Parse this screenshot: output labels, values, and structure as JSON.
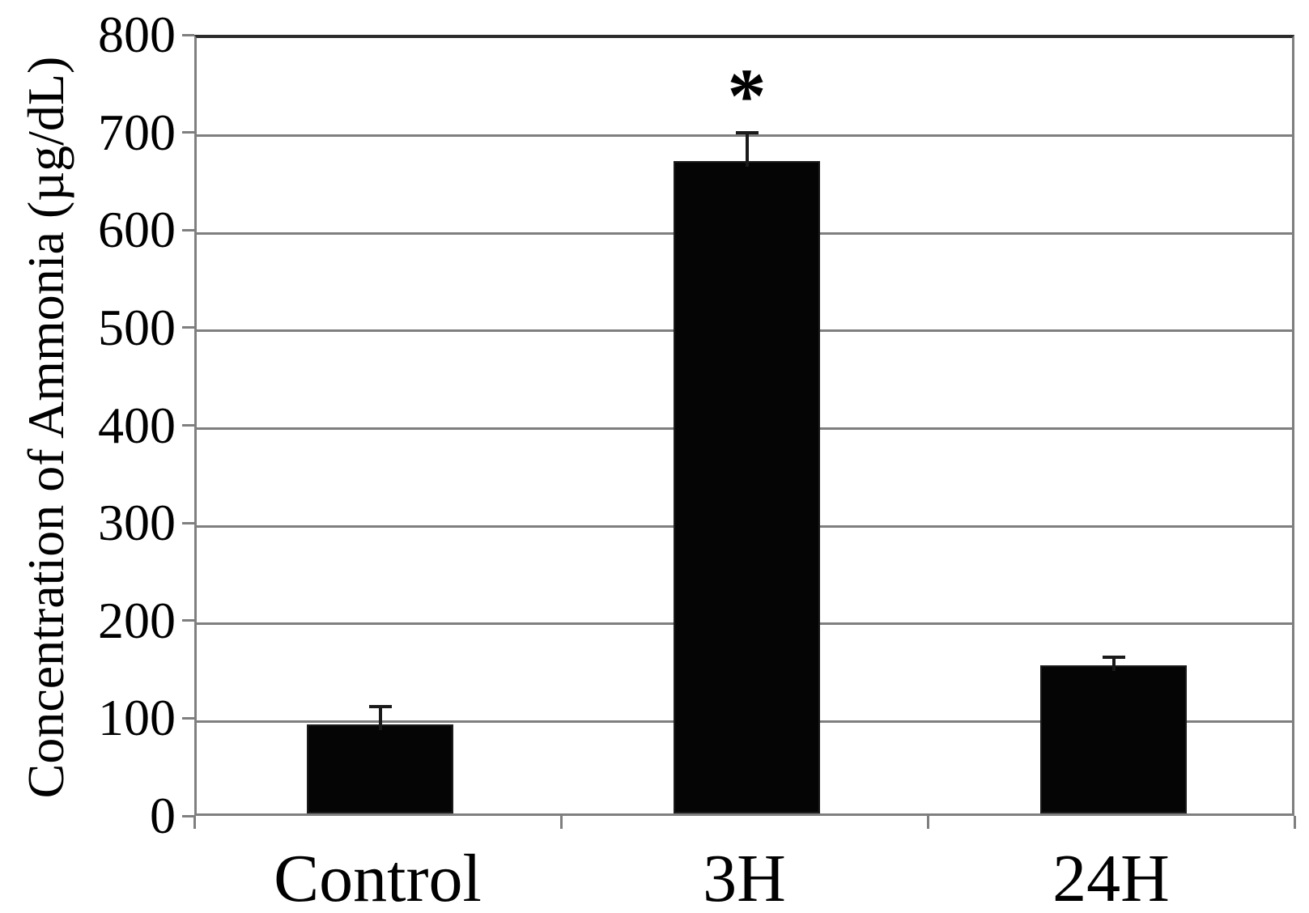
{
  "chart_data": {
    "type": "bar",
    "title": "",
    "ylabel": "Concentration of Ammonia (µg/dL)",
    "xlabel": "",
    "categories": [
      "Control",
      "3H",
      "24H"
    ],
    "values": [
      91,
      668,
      152
    ],
    "error_plus": [
      24,
      35,
      14
    ],
    "error_top": [
      115,
      703,
      166
    ],
    "significant": [
      false,
      true,
      false
    ],
    "significance_marker": "*",
    "ylim": [
      0,
      800
    ],
    "yticks": [
      0,
      100,
      200,
      300,
      400,
      500,
      600,
      700,
      800
    ],
    "grid": "horizontal-gridlines-every-100",
    "legend": "none",
    "colors": {
      "bar": "#050505",
      "bar_border": "#1c1c1c",
      "gridline": "#7f7f7f",
      "axis_border": "#7f7f7f",
      "top_border": "#2b2b2b",
      "error_bar": "#1a1a1a",
      "text": "#000000",
      "background": "#ffffff"
    }
  }
}
